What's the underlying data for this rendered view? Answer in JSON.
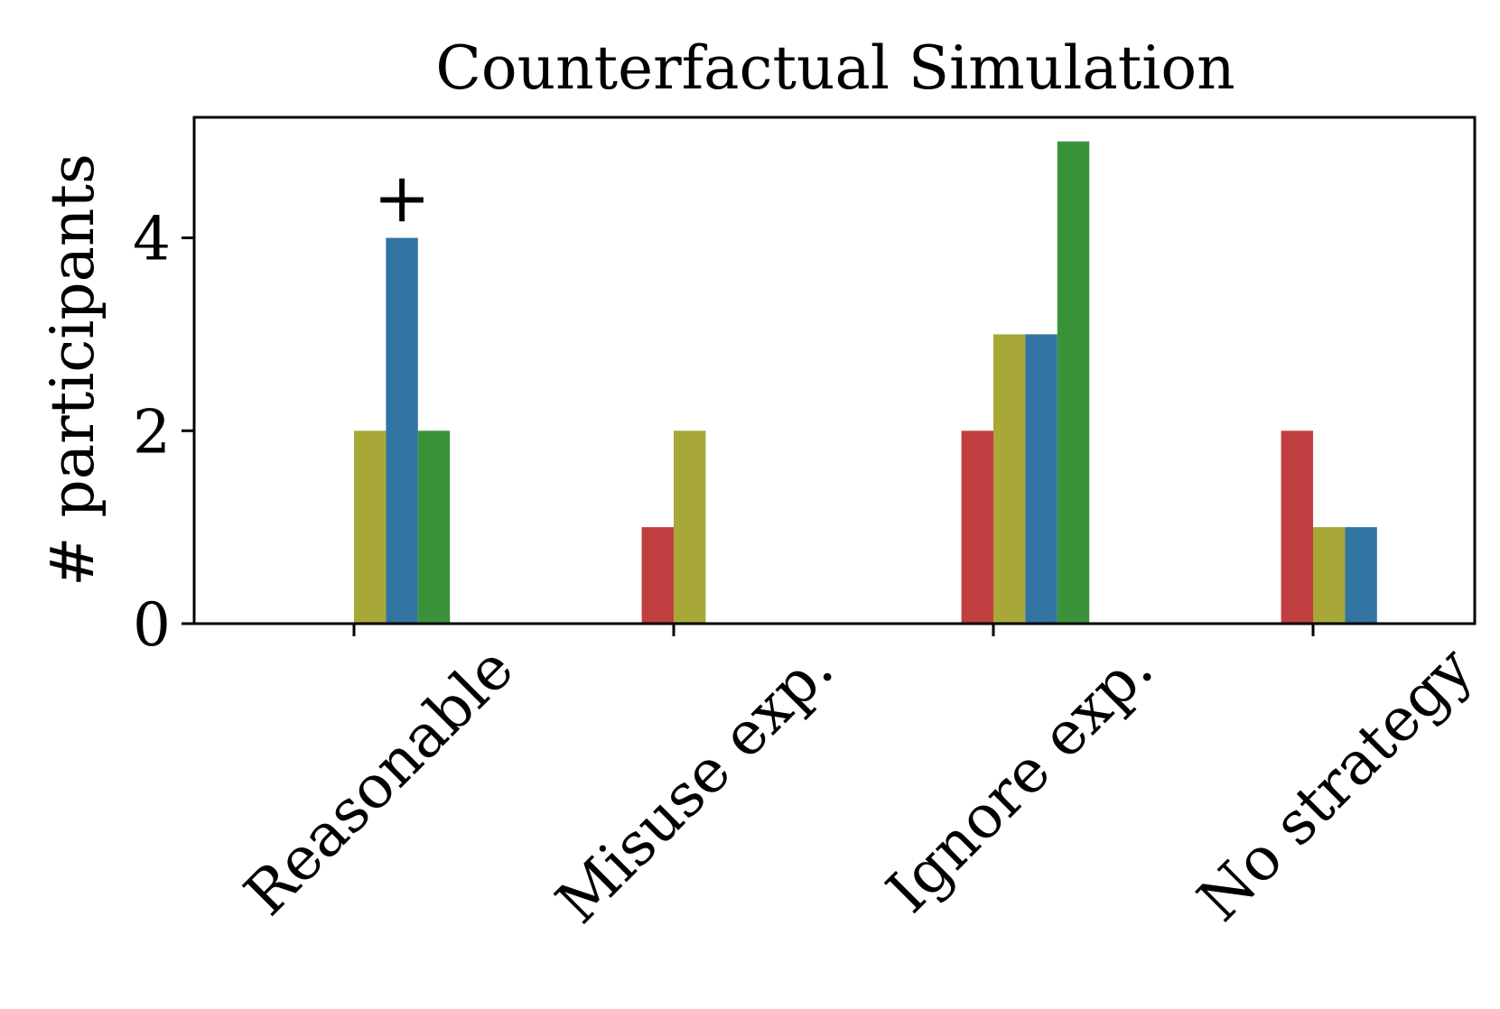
{
  "chart_data": {
    "type": "bar",
    "title": "Counterfactual Simulation",
    "xlabel": "",
    "ylabel": "# participants",
    "ylim": [
      0,
      5.25
    ],
    "yticks": [
      0,
      2,
      4
    ],
    "categories": [
      "Reasonable",
      "Misuse exp.",
      "Ignore exp.",
      "No strategy"
    ],
    "series": [
      {
        "name": "red",
        "color": "#c13e40",
        "values": [
          0,
          1,
          2,
          2
        ]
      },
      {
        "name": "olive",
        "color": "#a8a838",
        "values": [
          2,
          2,
          3,
          1
        ]
      },
      {
        "name": "blue",
        "color": "#3274a1",
        "values": [
          4,
          0,
          3,
          1
        ]
      },
      {
        "name": "green",
        "color": "#3a923a",
        "values": [
          2,
          0,
          5,
          0
        ]
      }
    ],
    "annotations": [
      {
        "text": "+",
        "category": "Reasonable",
        "series": "blue",
        "value": 4
      }
    ],
    "grid": false,
    "legend": "none"
  }
}
